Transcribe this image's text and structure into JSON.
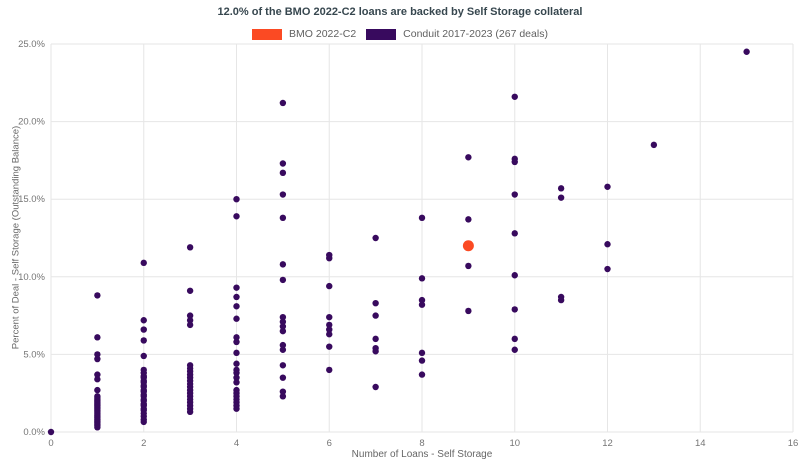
{
  "title": "12.0% of the BMO 2022-C2 loans are backed by Self Storage collateral",
  "legend": [
    {
      "label": "BMO 2022-C2",
      "color": "#fb4a23"
    },
    {
      "label": "Conduit 2017-2023 (267 deals)",
      "color": "#380a5e"
    }
  ],
  "colors": {
    "grid": "#e6e6e6",
    "tick_text": "#757575",
    "axis_title_text": "#666666",
    "title_text": "#37474f"
  },
  "chart_data": {
    "type": "scatter",
    "title": "12.0% of the BMO 2022-C2 loans are backed by Self Storage collateral",
    "xlabel": "Number of Loans - Self Storage",
    "ylabel": "Percent of Deal - Self Storage (Outstanding Balance)",
    "xlim": [
      0,
      16
    ],
    "ylim": [
      0,
      25
    ],
    "grid": true,
    "legend_position": "top",
    "x_ticks": [
      0,
      2,
      4,
      6,
      8,
      10,
      12,
      14,
      16
    ],
    "x_tick_labels": [
      "0",
      "2",
      "4",
      "6",
      "8",
      "10",
      "12",
      "14",
      "16"
    ],
    "y_ticks": [
      0,
      5,
      10,
      15,
      20,
      25
    ],
    "y_tick_labels": [
      "0.0%",
      "5.0%",
      "10.0%",
      "15.0%",
      "20.0%",
      "25.0%"
    ],
    "series": [
      {
        "name": "Conduit 2017-2023 (267 deals)",
        "color": "#380a5e",
        "marker_size": 3.2,
        "points": [
          [
            0,
            0.0
          ],
          [
            1,
            8.8
          ],
          [
            1,
            6.1
          ],
          [
            1,
            5.0
          ],
          [
            1,
            4.7
          ],
          [
            1,
            3.7
          ],
          [
            1,
            3.4
          ],
          [
            1,
            2.7
          ],
          [
            1,
            2.3
          ],
          [
            1,
            2.2
          ],
          [
            1,
            2.1
          ],
          [
            1,
            2.0
          ],
          [
            1,
            1.9
          ],
          [
            1,
            1.8
          ],
          [
            1,
            1.7
          ],
          [
            1,
            1.6
          ],
          [
            1,
            1.5
          ],
          [
            1,
            1.4
          ],
          [
            1,
            1.3
          ],
          [
            1,
            1.2
          ],
          [
            1,
            1.1
          ],
          [
            1,
            1.0
          ],
          [
            1,
            0.9
          ],
          [
            1,
            0.8
          ],
          [
            1,
            0.7
          ],
          [
            1,
            0.6
          ],
          [
            1,
            0.5
          ],
          [
            1,
            0.4
          ],
          [
            1,
            0.3
          ],
          [
            2,
            10.9
          ],
          [
            2,
            7.2
          ],
          [
            2,
            6.6
          ],
          [
            2,
            5.9
          ],
          [
            2,
            4.9
          ],
          [
            2,
            4.0
          ],
          [
            2,
            3.8
          ],
          [
            2,
            3.6
          ],
          [
            2,
            3.5
          ],
          [
            2,
            3.3
          ],
          [
            2,
            3.2
          ],
          [
            2,
            3.0
          ],
          [
            2,
            2.9
          ],
          [
            2,
            2.7
          ],
          [
            2,
            2.6
          ],
          [
            2,
            2.4
          ],
          [
            2,
            2.3
          ],
          [
            2,
            2.1
          ],
          [
            2,
            2.0
          ],
          [
            2,
            1.8
          ],
          [
            2,
            1.7
          ],
          [
            2,
            1.5
          ],
          [
            2,
            1.4
          ],
          [
            2,
            1.2
          ],
          [
            2,
            1.0
          ],
          [
            2,
            0.8
          ],
          [
            2,
            0.65
          ],
          [
            3,
            11.9
          ],
          [
            3,
            9.1
          ],
          [
            3,
            7.5
          ],
          [
            3,
            7.2
          ],
          [
            3,
            6.9
          ],
          [
            3,
            4.3
          ],
          [
            3,
            4.1
          ],
          [
            3,
            3.9
          ],
          [
            3,
            3.7
          ],
          [
            3,
            3.5
          ],
          [
            3,
            3.3
          ],
          [
            3,
            3.1
          ],
          [
            3,
            2.9
          ],
          [
            3,
            2.7
          ],
          [
            3,
            2.5
          ],
          [
            3,
            2.3
          ],
          [
            3,
            2.1
          ],
          [
            3,
            1.9
          ],
          [
            3,
            1.7
          ],
          [
            3,
            1.5
          ],
          [
            3,
            1.3
          ],
          [
            4,
            15.0
          ],
          [
            4,
            13.9
          ],
          [
            4,
            9.3
          ],
          [
            4,
            8.7
          ],
          [
            4,
            8.1
          ],
          [
            4,
            7.3
          ],
          [
            4,
            6.1
          ],
          [
            4,
            5.8
          ],
          [
            4,
            5.1
          ],
          [
            4,
            4.4
          ],
          [
            4,
            4.0
          ],
          [
            4,
            3.8
          ],
          [
            4,
            3.5
          ],
          [
            4,
            3.2
          ],
          [
            4,
            2.7
          ],
          [
            4,
            2.5
          ],
          [
            4,
            2.3
          ],
          [
            4,
            2.1
          ],
          [
            4,
            1.9
          ],
          [
            4,
            1.7
          ],
          [
            4,
            1.5
          ],
          [
            5,
            21.2
          ],
          [
            5,
            17.3
          ],
          [
            5,
            16.7
          ],
          [
            5,
            15.3
          ],
          [
            5,
            13.8
          ],
          [
            5,
            10.8
          ],
          [
            5,
            9.8
          ],
          [
            5,
            7.4
          ],
          [
            5,
            7.1
          ],
          [
            5,
            6.8
          ],
          [
            5,
            6.5
          ],
          [
            5,
            5.6
          ],
          [
            5,
            5.3
          ],
          [
            5,
            4.3
          ],
          [
            5,
            3.5
          ],
          [
            5,
            2.6
          ],
          [
            5,
            2.3
          ],
          [
            6,
            11.4
          ],
          [
            6,
            11.2
          ],
          [
            6,
            9.4
          ],
          [
            6,
            7.4
          ],
          [
            6,
            6.9
          ],
          [
            6,
            6.6
          ],
          [
            6,
            6.3
          ],
          [
            6,
            5.5
          ],
          [
            6,
            4.0
          ],
          [
            7,
            12.5
          ],
          [
            7,
            8.3
          ],
          [
            7,
            7.5
          ],
          [
            7,
            6.0
          ],
          [
            7,
            5.4
          ],
          [
            7,
            5.2
          ],
          [
            7,
            2.9
          ],
          [
            8,
            13.8
          ],
          [
            8,
            9.9
          ],
          [
            8,
            8.5
          ],
          [
            8,
            8.2
          ],
          [
            8,
            5.1
          ],
          [
            8,
            4.6
          ],
          [
            8,
            3.7
          ],
          [
            9,
            17.7
          ],
          [
            9,
            13.7
          ],
          [
            9,
            10.7
          ],
          [
            9,
            7.8
          ],
          [
            10,
            21.6
          ],
          [
            10,
            17.6
          ],
          [
            10,
            17.4
          ],
          [
            10,
            15.3
          ],
          [
            10,
            12.8
          ],
          [
            10,
            10.1
          ],
          [
            10,
            7.9
          ],
          [
            10,
            6.0
          ],
          [
            10,
            5.3
          ],
          [
            11,
            15.7
          ],
          [
            11,
            15.1
          ],
          [
            11,
            8.7
          ],
          [
            11,
            8.5
          ],
          [
            12,
            15.8
          ],
          [
            12,
            12.1
          ],
          [
            12,
            10.5
          ],
          [
            13,
            18.5
          ],
          [
            15,
            24.5
          ]
        ]
      },
      {
        "name": "BMO 2022-C2",
        "color": "#fb4a23",
        "marker_size": 5.5,
        "points": [
          [
            9,
            12.0
          ]
        ]
      }
    ]
  }
}
